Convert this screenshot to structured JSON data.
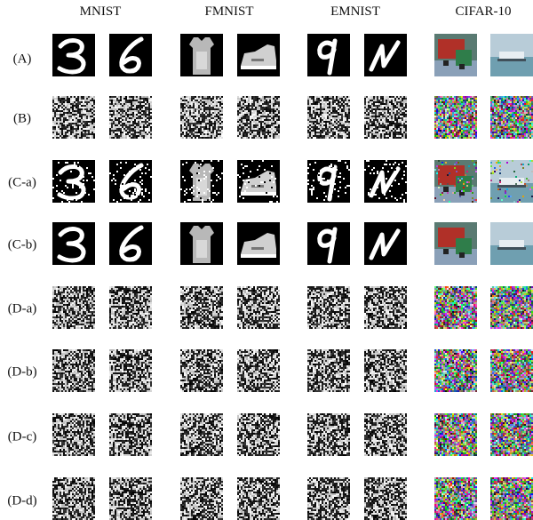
{
  "columns": [
    {
      "name": "MNIST",
      "kind": "gray"
    },
    {
      "name": "FMNIST",
      "kind": "gray"
    },
    {
      "name": "EMNIST",
      "kind": "gray"
    },
    {
      "name": "CIFAR-10",
      "kind": "color"
    }
  ],
  "rows": [
    {
      "label": "(A)",
      "variant": "original"
    },
    {
      "label": "(B)",
      "variant": "noise"
    },
    {
      "label": "(C-a)",
      "variant": "speckled"
    },
    {
      "label": "(C-b)",
      "variant": "original"
    },
    {
      "label": "(D-a)",
      "variant": "noise"
    },
    {
      "label": "(D-b)",
      "variant": "noise"
    },
    {
      "label": "(D-c)",
      "variant": "noise"
    },
    {
      "label": "(D-d)",
      "variant": "noise"
    }
  ],
  "samples": [
    {
      "dataset": "MNIST",
      "content": [
        "digit-3",
        "digit-6"
      ]
    },
    {
      "dataset": "FMNIST",
      "content": [
        "dress",
        "sneaker"
      ]
    },
    {
      "dataset": "EMNIST",
      "content": [
        "letter-q",
        "letter-n"
      ]
    },
    {
      "dataset": "CIFAR-10",
      "content": [
        "truck",
        "ship"
      ]
    }
  ]
}
